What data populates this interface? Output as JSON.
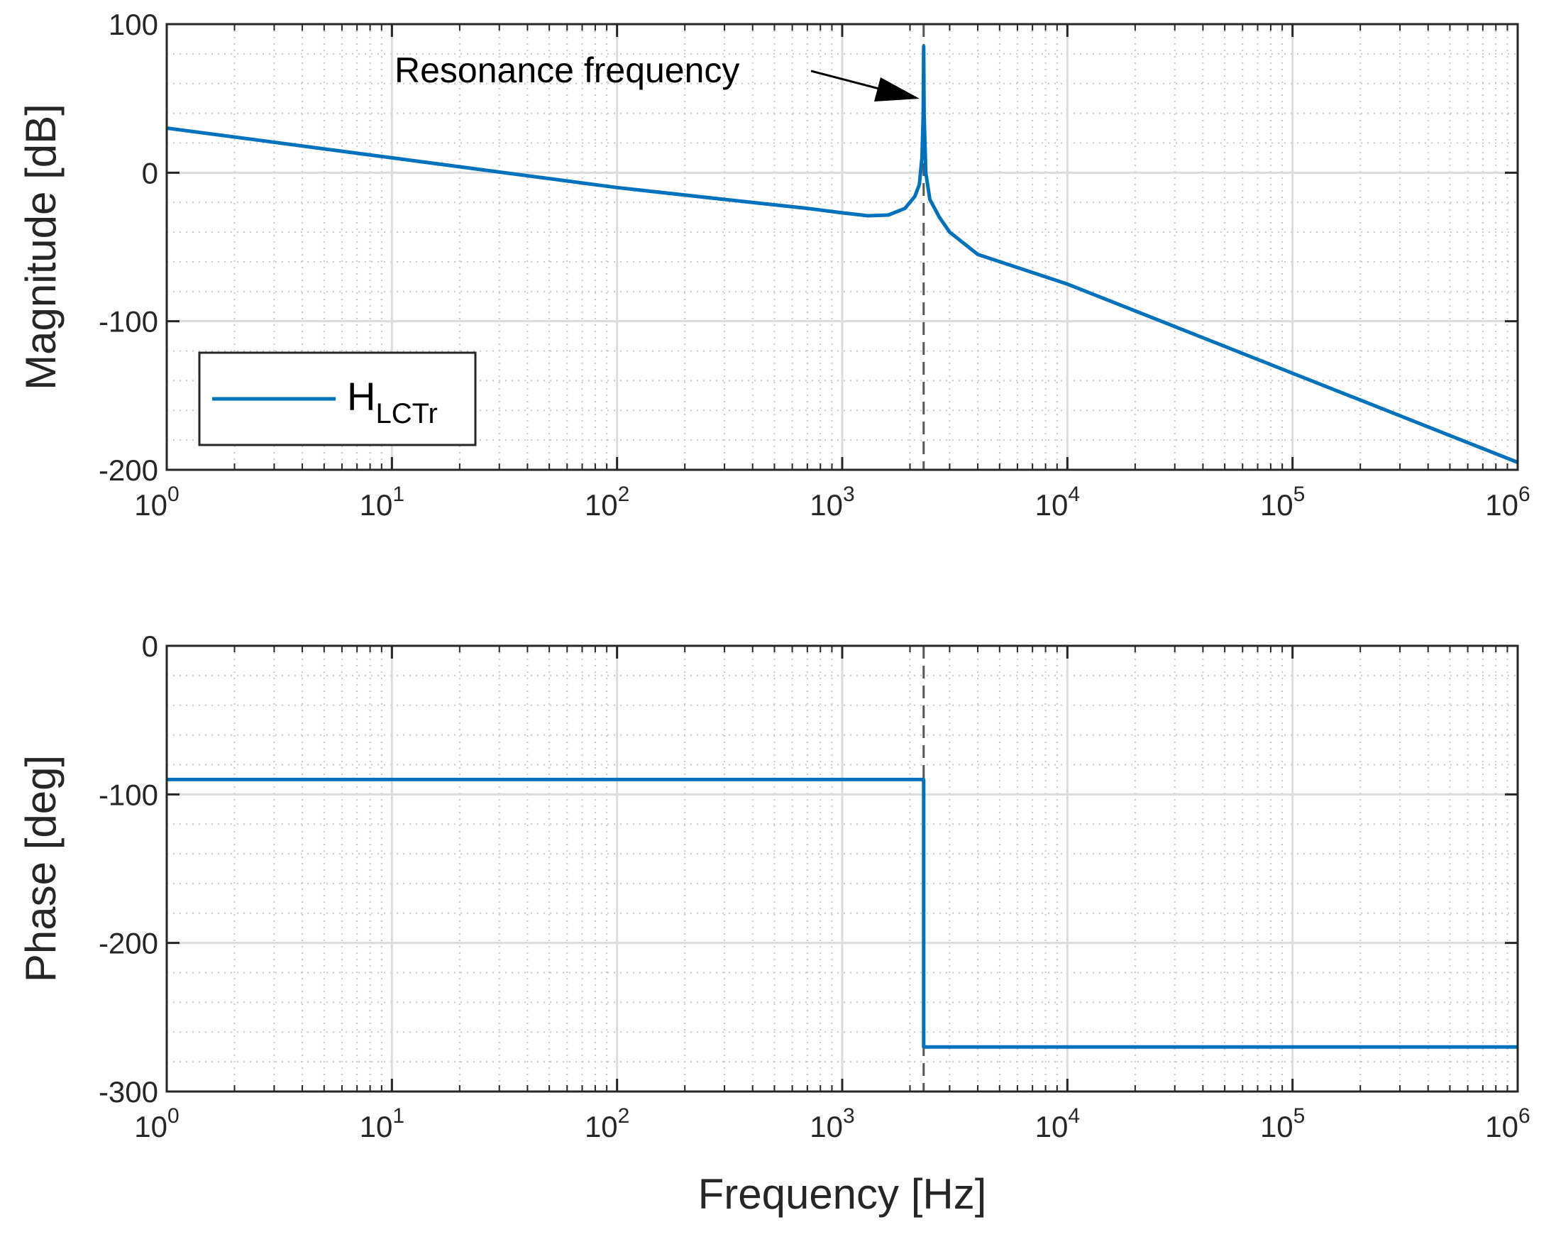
{
  "chart_data": [
    {
      "type": "line",
      "panel": "magnitude",
      "title": "",
      "xlabel": "",
      "ylabel": "Magnitude [dB]",
      "xscale": "log",
      "xlim": [
        1,
        1000000
      ],
      "ylim": [
        -200,
        100
      ],
      "yticks": [
        100,
        0,
        -100,
        -200
      ],
      "xticks": [
        {
          "base": "10",
          "exp": "0",
          "value": 1
        },
        {
          "base": "10",
          "exp": "1",
          "value": 10
        },
        {
          "base": "10",
          "exp": "2",
          "value": 100
        },
        {
          "base": "10",
          "exp": "3",
          "value": 1000
        },
        {
          "base": "10",
          "exp": "4",
          "value": 10000
        },
        {
          "base": "10",
          "exp": "5",
          "value": 100000
        },
        {
          "base": "10",
          "exp": "6",
          "value": 1000000
        }
      ],
      "grid": true,
      "legend": {
        "position": "bottom-left",
        "entries": [
          {
            "main": "H",
            "sub": "LCTr"
          }
        ]
      },
      "annotation": {
        "text": "Resonance frequency",
        "target_x": 2300,
        "target_y": 58
      },
      "resonance_marker_x": 2300,
      "series": [
        {
          "name": "H_LCTr",
          "color": "#0072BD",
          "x": [
            1,
            10,
            100,
            300,
            700,
            1000,
            1300,
            1600,
            1900,
            2100,
            2200,
            2260,
            2290,
            2300,
            2310,
            2350,
            2450,
            2700,
            3000,
            4000,
            10000,
            100000,
            1000000
          ],
          "y": [
            30,
            10,
            -10,
            -18,
            -24,
            -27,
            -29,
            -28.5,
            -24,
            -16,
            -8,
            10,
            40,
            85,
            40,
            0,
            -18,
            -30,
            -40,
            -55,
            -75,
            -135,
            -195
          ]
        }
      ]
    },
    {
      "type": "line",
      "panel": "phase",
      "title": "",
      "xlabel": "Frequency [Hz]",
      "ylabel": "Phase [deg]",
      "xscale": "log",
      "xlim": [
        1,
        1000000
      ],
      "ylim": [
        -300,
        0
      ],
      "yticks": [
        0,
        -100,
        -200,
        -300
      ],
      "xticks": [
        {
          "base": "10",
          "exp": "0",
          "value": 1
        },
        {
          "base": "10",
          "exp": "1",
          "value": 10
        },
        {
          "base": "10",
          "exp": "2",
          "value": 100
        },
        {
          "base": "10",
          "exp": "3",
          "value": 1000
        },
        {
          "base": "10",
          "exp": "4",
          "value": 10000
        },
        {
          "base": "10",
          "exp": "5",
          "value": 100000
        },
        {
          "base": "10",
          "exp": "6",
          "value": 1000000
        }
      ],
      "grid": true,
      "resonance_marker_x": 2300,
      "series": [
        {
          "name": "H_LCTr",
          "color": "#0072BD",
          "x": [
            1,
            2300,
            2300,
            1000000
          ],
          "y": [
            -90,
            -90,
            -270,
            -270
          ]
        }
      ]
    }
  ]
}
